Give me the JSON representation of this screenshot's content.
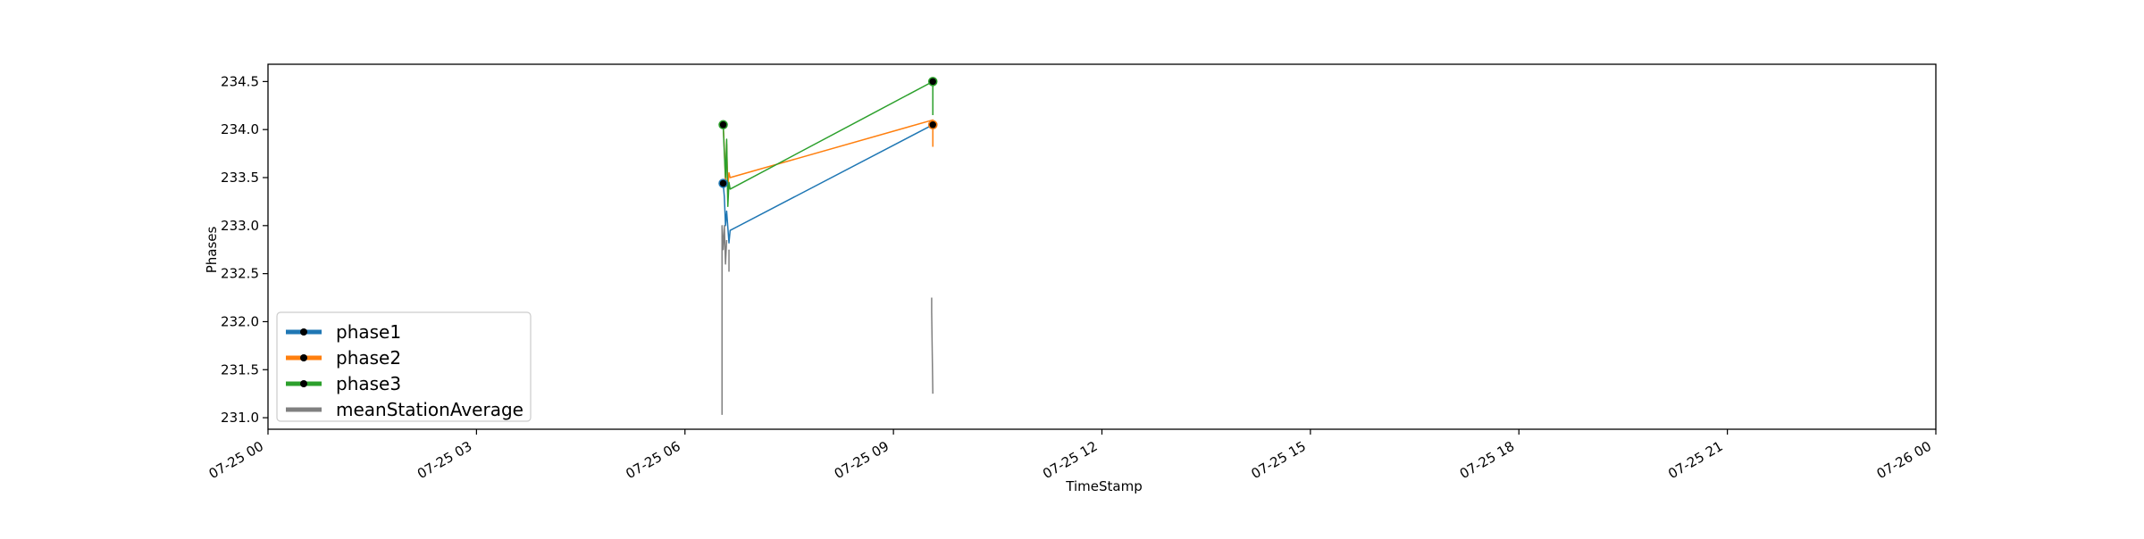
{
  "chart_data": {
    "type": "line",
    "title": "",
    "xlabel": "TimeStamp",
    "ylabel": "Phases",
    "xlim": [
      "07-25 00",
      "07-26 00"
    ],
    "ylim": [
      230.88,
      234.68
    ],
    "x_ticks": [
      "07-25 00",
      "07-25 03",
      "07-25 06",
      "07-25 09",
      "07-25 12",
      "07-25 15",
      "07-25 18",
      "07-25 21",
      "07-26 00"
    ],
    "y_ticks": [
      "231.0",
      "231.5",
      "232.0",
      "232.5",
      "233.0",
      "233.5",
      "234.0",
      "234.5"
    ],
    "grid": false,
    "legend_position": "lower-left",
    "series": [
      {
        "name": "phase1",
        "color": "#1f77b4",
        "points": [
          [
            "07-25 06:33",
            233.44
          ],
          [
            "07-25 06:34",
            233.3
          ],
          [
            "07-25 06:35",
            233.0
          ],
          [
            "07-25 06:36",
            233.15
          ],
          [
            "07-25 06:38",
            232.82
          ],
          [
            "07-25 06:39",
            232.95
          ],
          [
            "07-25 09:34",
            234.05
          ]
        ],
        "markers": [
          [
            "07-25 06:33",
            233.44
          ],
          [
            "07-25 09:34",
            234.05
          ]
        ]
      },
      {
        "name": "phase2",
        "color": "#ff7f0e",
        "points": [
          [
            "07-25 06:33",
            234.05
          ],
          [
            "07-25 06:34",
            233.8
          ],
          [
            "07-25 06:35",
            233.45
          ],
          [
            "07-25 06:36",
            233.85
          ],
          [
            "07-25 06:37",
            233.4
          ],
          [
            "07-25 06:38",
            233.55
          ],
          [
            "07-25 06:39",
            233.5
          ],
          [
            "07-25 09:34",
            234.1
          ],
          [
            "07-25 09:34",
            233.82
          ]
        ],
        "markers": [
          [
            "07-25 09:34",
            234.05
          ]
        ]
      },
      {
        "name": "phase3",
        "color": "#2ca02c",
        "points": [
          [
            "07-25 06:33",
            234.05
          ],
          [
            "07-25 06:34",
            233.75
          ],
          [
            "07-25 06:35",
            233.5
          ],
          [
            "07-25 06:36",
            233.9
          ],
          [
            "07-25 06:37",
            233.2
          ],
          [
            "07-25 06:38",
            233.45
          ],
          [
            "07-25 06:39",
            233.38
          ],
          [
            "07-25 09:34",
            234.5
          ],
          [
            "07-25 09:34",
            234.15
          ]
        ],
        "markers": [
          [
            "07-25 06:33",
            234.05
          ],
          [
            "07-25 09:34",
            234.5
          ]
        ]
      },
      {
        "name": "meanStationAverage",
        "color": "#808080",
        "segments": [
          [
            [
              "07-25 06:32",
              231.03
            ],
            [
              "07-25 06:32",
              233.0
            ],
            [
              "07-25 06:33",
              232.75
            ],
            [
              "07-25 06:34",
              233.0
            ],
            [
              "07-25 06:35",
              232.6
            ],
            [
              "07-25 06:36",
              232.85
            ]
          ],
          [
            [
              "07-25 06:38",
              232.75
            ],
            [
              "07-25 06:38",
              232.52
            ]
          ],
          [
            [
              "07-25 09:33",
              232.25
            ],
            [
              "07-25 09:33",
              232.1
            ],
            [
              "07-25 09:34",
              231.25
            ]
          ]
        ],
        "markers": []
      }
    ]
  }
}
